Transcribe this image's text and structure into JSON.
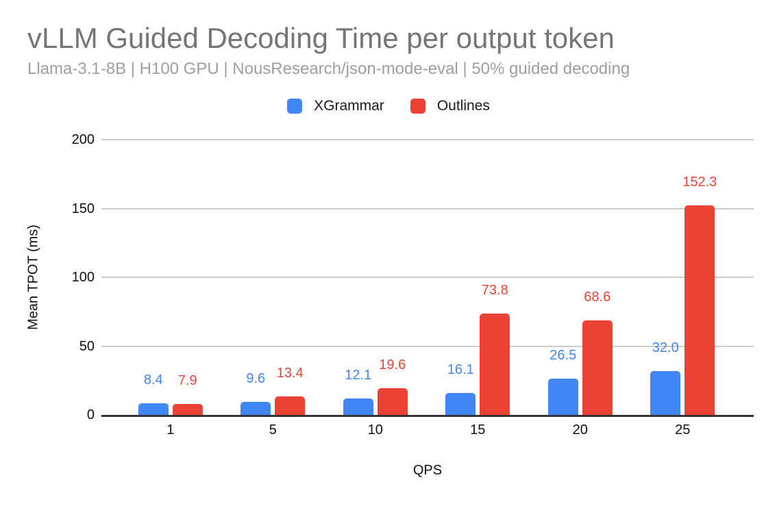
{
  "title": "vLLM Guided Decoding Time per output token",
  "subtitle": "Llama-3.1-8B | H100 GPU | NousResearch/json-mode-eval | 50% guided decoding",
  "theme": {
    "title_color": "#757575",
    "subtitle_color": "#9e9e9e",
    "gridline_color": "#cccccc",
    "axis_line_color": "#333333",
    "tick_label_color": "#111111",
    "legend_text_color": "#1a1a1a",
    "background": "#ffffff"
  },
  "chart_data": {
    "type": "bar",
    "title": "vLLM Guided Decoding Time per output token",
    "subtitle": "Llama-3.1-8B | H100 GPU | NousResearch/json-mode-eval | 50% guided decoding",
    "categories": [
      "1",
      "5",
      "10",
      "15",
      "20",
      "25"
    ],
    "series": [
      {
        "name": "XGrammar",
        "color": "#4285F4",
        "values": [
          8.4,
          9.6,
          12.1,
          16.1,
          26.5,
          32.0
        ]
      },
      {
        "name": "Outlines",
        "color": "#EA4335",
        "values": [
          7.9,
          13.4,
          19.6,
          73.8,
          68.6,
          152.3
        ]
      }
    ],
    "xlabel": "QPS",
    "ylabel": "Mean TPOT (ms)",
    "ylim": [
      0,
      200
    ],
    "yticks": [
      0,
      50,
      100,
      150,
      200
    ],
    "grid": true,
    "legend_position": "top",
    "data_labels": true,
    "data_label_decimals": 1
  }
}
